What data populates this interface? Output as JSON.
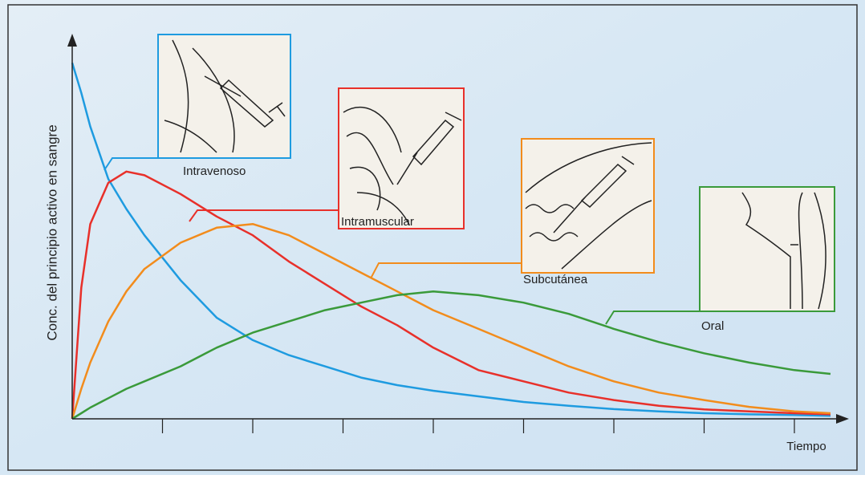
{
  "chart_data": {
    "type": "line",
    "y_label": "Conc. del principio activo en sangre",
    "x_label": "Tiempo",
    "x": [
      0,
      0.1,
      0.2,
      0.4,
      0.6,
      0.8,
      1.2,
      1.6,
      2.0,
      2.4,
      2.8,
      3.2,
      3.6,
      4.0,
      4.5,
      5.0,
      5.5,
      6.0,
      6.5,
      7.0,
      7.5,
      8.0,
      8.4
    ],
    "xlim": [
      0,
      8.4
    ],
    "xticks": [
      1,
      2,
      3,
      4,
      5,
      6,
      7,
      8
    ],
    "ylim": [
      0,
      100
    ],
    "series": [
      {
        "name": "Intravenoso",
        "color": "#1e9be0",
        "values": [
          95,
          87,
          78,
          64,
          56,
          49,
          37,
          27,
          21,
          17,
          14,
          11,
          9,
          7.5,
          6,
          4.5,
          3.5,
          2.6,
          2,
          1.5,
          1.2,
          1,
          0.8
        ]
      },
      {
        "name": "Intramuscular",
        "color": "#e8302a",
        "values": [
          0,
          35,
          52,
          63,
          66,
          65,
          60,
          54,
          49,
          42,
          36,
          30,
          25,
          19,
          13,
          10,
          7,
          5,
          3.5,
          2.5,
          2,
          1.5,
          1.2
        ]
      },
      {
        "name": "Subcutánea",
        "color": "#f28c1c",
        "values": [
          0,
          8,
          15,
          26,
          34,
          40,
          47,
          51,
          52,
          49,
          44,
          39,
          34,
          29,
          24,
          19,
          14,
          10,
          7,
          5,
          3.2,
          2,
          1.5
        ]
      },
      {
        "name": "Oral",
        "color": "#3a9a3a",
        "values": [
          0,
          1.5,
          3,
          5.5,
          8,
          10,
          14,
          19,
          23,
          26,
          29,
          31,
          33,
          34,
          33,
          31,
          28,
          24,
          20.5,
          17.5,
          15,
          13,
          12
        ]
      }
    ]
  }
}
